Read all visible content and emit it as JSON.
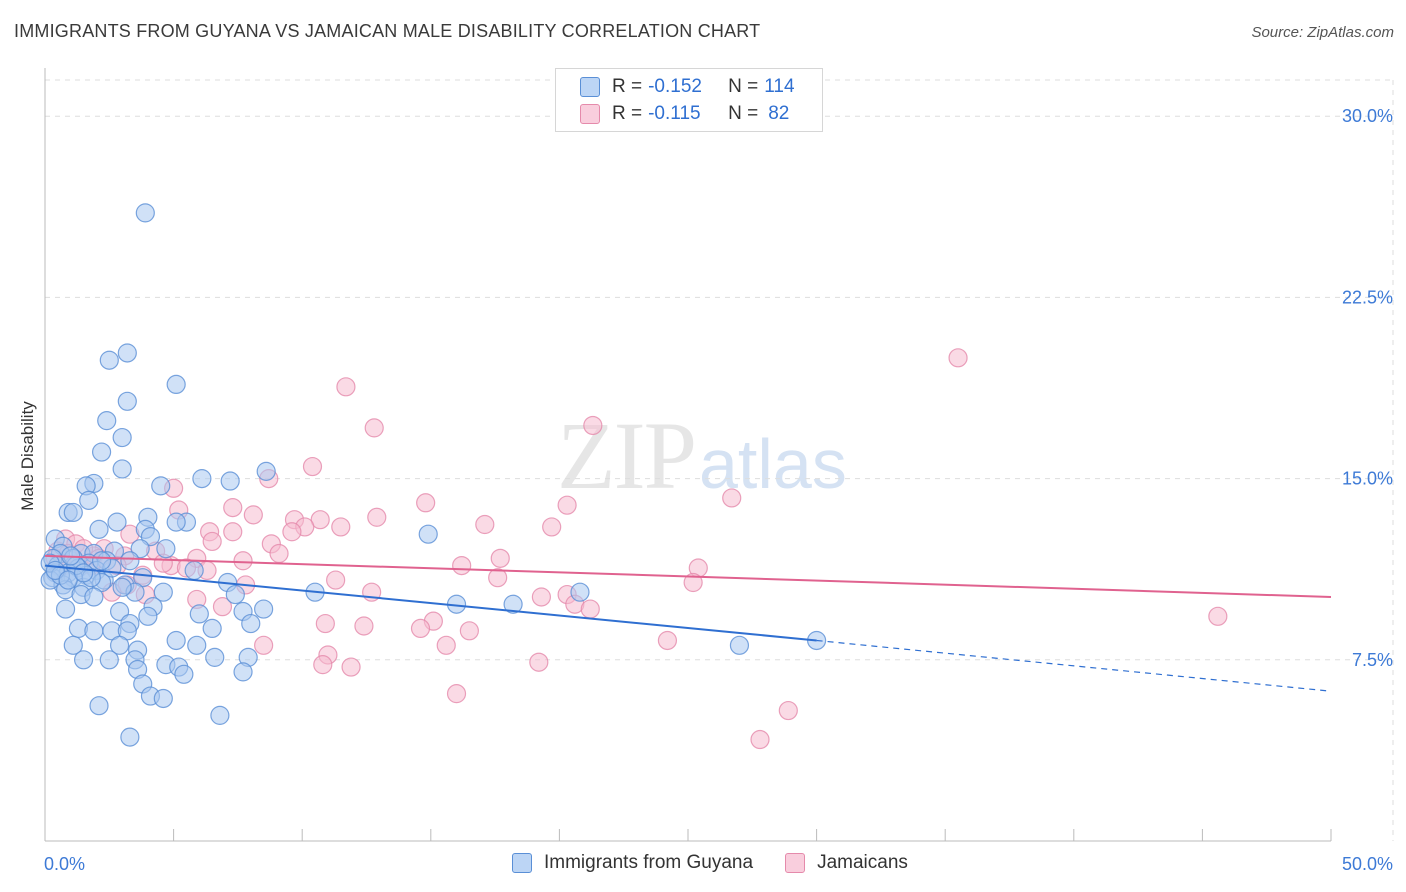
{
  "header": {
    "title": "IMMIGRANTS FROM GUYANA VS JAMAICAN MALE DISABILITY CORRELATION CHART",
    "source": "Source: ZipAtlas.com"
  },
  "watermark": {
    "zip": "ZIP",
    "atlas": "atlas"
  },
  "legend": {
    "rows": [
      {
        "r_label": "R = ",
        "r_value": "-0.152",
        "n_label": "N = ",
        "n_value": "114"
      },
      {
        "r_label": "R = ",
        "r_value": "-0.115",
        "n_label": "N = ",
        "n_value": "82"
      }
    ]
  },
  "colors": {
    "blue_fill": "#a9c8f0",
    "blue_stroke": "#5a8fd6",
    "blue_line": "#2f6fd1",
    "pink_fill": "#f6bcd0",
    "pink_stroke": "#e58aab",
    "pink_line": "#e0628f",
    "grid": "#dddddd",
    "axis_text": "#3d7ad6"
  },
  "chart_data": {
    "type": "scatter",
    "title": "IMMIGRANTS FROM GUYANA VS JAMAICAN MALE DISABILITY CORRELATION CHART",
    "xlabel": "",
    "ylabel": "Male Disability",
    "xlim": [
      0,
      50
    ],
    "ylim": [
      0,
      31.5
    ],
    "x_tick_labels": [
      "0.0%",
      "50.0%"
    ],
    "y_ticks": [
      7.5,
      15.0,
      22.5,
      30.0
    ],
    "y_tick_labels": [
      "7.5%",
      "15.0%",
      "22.5%",
      "30.0%"
    ],
    "grid": true,
    "legend_position": "bottom-center",
    "series": [
      {
        "name": "Immigrants from Guyana",
        "r": -0.152,
        "n": 114,
        "trend": {
          "x0": 0.0,
          "y0": 11.4,
          "x1": 30.0,
          "y1": 8.3,
          "dashed_to_x": 50.0,
          "dashed_to_y": 6.2
        },
        "points": [
          [
            3.9,
            26.0
          ],
          [
            3.2,
            20.2
          ],
          [
            2.5,
            19.9
          ],
          [
            5.1,
            18.9
          ],
          [
            3.2,
            18.2
          ],
          [
            2.4,
            17.4
          ],
          [
            3.0,
            16.7
          ],
          [
            2.2,
            16.1
          ],
          [
            3.0,
            15.4
          ],
          [
            8.6,
            15.3
          ],
          [
            6.1,
            15.0
          ],
          [
            7.2,
            14.9
          ],
          [
            1.9,
            14.8
          ],
          [
            1.6,
            14.7
          ],
          [
            4.5,
            14.7
          ],
          [
            1.7,
            14.1
          ],
          [
            0.9,
            13.6
          ],
          [
            1.1,
            13.6
          ],
          [
            4.0,
            13.4
          ],
          [
            2.8,
            13.2
          ],
          [
            5.5,
            13.2
          ],
          [
            5.1,
            13.2
          ],
          [
            2.1,
            12.9
          ],
          [
            3.9,
            12.9
          ],
          [
            4.1,
            12.6
          ],
          [
            0.4,
            12.5
          ],
          [
            14.9,
            12.7
          ],
          [
            0.7,
            12.2
          ],
          [
            3.7,
            12.1
          ],
          [
            4.7,
            12.1
          ],
          [
            0.6,
            11.9
          ],
          [
            1.4,
            11.9
          ],
          [
            1.9,
            11.9
          ],
          [
            2.7,
            12.0
          ],
          [
            0.3,
            11.7
          ],
          [
            1.1,
            11.7
          ],
          [
            2.4,
            11.6
          ],
          [
            3.3,
            11.6
          ],
          [
            1.7,
            11.5
          ],
          [
            0.5,
            11.4
          ],
          [
            1.3,
            11.3
          ],
          [
            2.0,
            11.2
          ],
          [
            0.4,
            11.1
          ],
          [
            0.9,
            11.1
          ],
          [
            1.6,
            11.0
          ],
          [
            0.3,
            10.9
          ],
          [
            1.1,
            10.9
          ],
          [
            2.3,
            10.8
          ],
          [
            3.8,
            10.9
          ],
          [
            5.8,
            11.2
          ],
          [
            0.7,
            10.6
          ],
          [
            1.5,
            10.5
          ],
          [
            2.2,
            10.7
          ],
          [
            3.1,
            10.6
          ],
          [
            7.1,
            10.7
          ],
          [
            0.2,
            10.8
          ],
          [
            0.8,
            10.4
          ],
          [
            1.4,
            10.2
          ],
          [
            1.9,
            10.1
          ],
          [
            3.5,
            10.3
          ],
          [
            4.6,
            10.3
          ],
          [
            7.4,
            10.2
          ],
          [
            10.5,
            10.3
          ],
          [
            16.0,
            9.8
          ],
          [
            18.2,
            9.8
          ],
          [
            20.8,
            10.3
          ],
          [
            0.8,
            9.6
          ],
          [
            2.9,
            9.5
          ],
          [
            4.2,
            9.7
          ],
          [
            6.0,
            9.4
          ],
          [
            7.7,
            9.5
          ],
          [
            8.5,
            9.6
          ],
          [
            3.3,
            9.0
          ],
          [
            4.0,
            9.3
          ],
          [
            8.0,
            9.0
          ],
          [
            1.3,
            8.8
          ],
          [
            1.9,
            8.7
          ],
          [
            2.6,
            8.7
          ],
          [
            3.2,
            8.7
          ],
          [
            6.5,
            8.8
          ],
          [
            1.1,
            8.1
          ],
          [
            2.9,
            8.1
          ],
          [
            3.6,
            7.9
          ],
          [
            5.1,
            8.3
          ],
          [
            5.9,
            8.1
          ],
          [
            7.9,
            7.6
          ],
          [
            27.0,
            8.1
          ],
          [
            30.0,
            8.3
          ],
          [
            1.5,
            7.5
          ],
          [
            2.5,
            7.5
          ],
          [
            3.5,
            7.5
          ],
          [
            4.7,
            7.3
          ],
          [
            5.2,
            7.2
          ],
          [
            6.6,
            7.6
          ],
          [
            3.6,
            7.1
          ],
          [
            5.4,
            6.9
          ],
          [
            7.7,
            7.0
          ],
          [
            3.8,
            6.5
          ],
          [
            4.1,
            6.0
          ],
          [
            4.6,
            5.9
          ],
          [
            2.1,
            5.6
          ],
          [
            6.8,
            5.2
          ],
          [
            3.3,
            4.3
          ],
          [
            0.2,
            11.5
          ],
          [
            0.6,
            11.0
          ],
          [
            1.2,
            11.4
          ],
          [
            2.6,
            11.3
          ],
          [
            1.8,
            10.9
          ],
          [
            0.4,
            11.2
          ],
          [
            1.0,
            11.8
          ],
          [
            2.2,
            11.6
          ],
          [
            0.9,
            10.8
          ],
          [
            3.0,
            10.5
          ],
          [
            1.5,
            11.1
          ]
        ]
      },
      {
        "name": "Jamaicans",
        "r": -0.115,
        "n": 82,
        "trend": {
          "x0": 0.0,
          "y0": 11.8,
          "x1": 50.0,
          "y1": 10.1
        },
        "points": [
          [
            35.5,
            20.0
          ],
          [
            11.7,
            18.8
          ],
          [
            12.8,
            17.1
          ],
          [
            21.3,
            17.2
          ],
          [
            10.4,
            15.5
          ],
          [
            8.7,
            15.0
          ],
          [
            5.0,
            14.6
          ],
          [
            26.7,
            14.2
          ],
          [
            14.8,
            14.0
          ],
          [
            20.3,
            13.9
          ],
          [
            7.3,
            13.8
          ],
          [
            5.2,
            13.7
          ],
          [
            8.1,
            13.5
          ],
          [
            12.9,
            13.4
          ],
          [
            9.7,
            13.3
          ],
          [
            10.7,
            13.3
          ],
          [
            10.1,
            13.0
          ],
          [
            11.5,
            13.0
          ],
          [
            17.1,
            13.1
          ],
          [
            19.7,
            13.0
          ],
          [
            9.6,
            12.8
          ],
          [
            6.4,
            12.8
          ],
          [
            7.3,
            12.8
          ],
          [
            3.3,
            12.7
          ],
          [
            0.8,
            12.5
          ],
          [
            1.2,
            12.3
          ],
          [
            6.5,
            12.4
          ],
          [
            8.8,
            12.3
          ],
          [
            0.5,
            12.0
          ],
          [
            2.3,
            12.1
          ],
          [
            4.3,
            12.0
          ],
          [
            9.1,
            11.9
          ],
          [
            1.9,
            11.8
          ],
          [
            0.4,
            11.7
          ],
          [
            3.1,
            11.8
          ],
          [
            5.9,
            11.7
          ],
          [
            7.7,
            11.6
          ],
          [
            17.7,
            11.7
          ],
          [
            1.3,
            11.5
          ],
          [
            2.8,
            11.4
          ],
          [
            4.9,
            11.4
          ],
          [
            5.5,
            11.3
          ],
          [
            16.2,
            11.4
          ],
          [
            25.4,
            11.3
          ],
          [
            0.6,
            11.3
          ],
          [
            1.8,
            11.4
          ],
          [
            3.8,
            11.0
          ],
          [
            6.3,
            11.2
          ],
          [
            17.6,
            10.9
          ],
          [
            11.3,
            10.8
          ],
          [
            3.2,
            10.6
          ],
          [
            7.8,
            10.6
          ],
          [
            25.2,
            10.7
          ],
          [
            2.6,
            10.3
          ],
          [
            3.9,
            10.2
          ],
          [
            12.7,
            10.3
          ],
          [
            20.3,
            10.2
          ],
          [
            19.3,
            10.1
          ],
          [
            5.9,
            10.0
          ],
          [
            20.6,
            9.8
          ],
          [
            21.2,
            9.6
          ],
          [
            6.9,
            9.7
          ],
          [
            15.1,
            9.1
          ],
          [
            10.9,
            9.0
          ],
          [
            14.6,
            8.8
          ],
          [
            12.4,
            8.9
          ],
          [
            16.5,
            8.7
          ],
          [
            8.5,
            8.1
          ],
          [
            15.6,
            8.1
          ],
          [
            24.2,
            8.3
          ],
          [
            11.0,
            7.7
          ],
          [
            10.8,
            7.3
          ],
          [
            11.9,
            7.2
          ],
          [
            19.2,
            7.4
          ],
          [
            16.0,
            6.1
          ],
          [
            28.9,
            5.4
          ],
          [
            27.8,
            4.2
          ],
          [
            45.6,
            9.3
          ],
          [
            0.9,
            11.9
          ],
          [
            2.1,
            11.7
          ],
          [
            1.5,
            12.1
          ],
          [
            4.6,
            11.5
          ]
        ]
      }
    ]
  }
}
